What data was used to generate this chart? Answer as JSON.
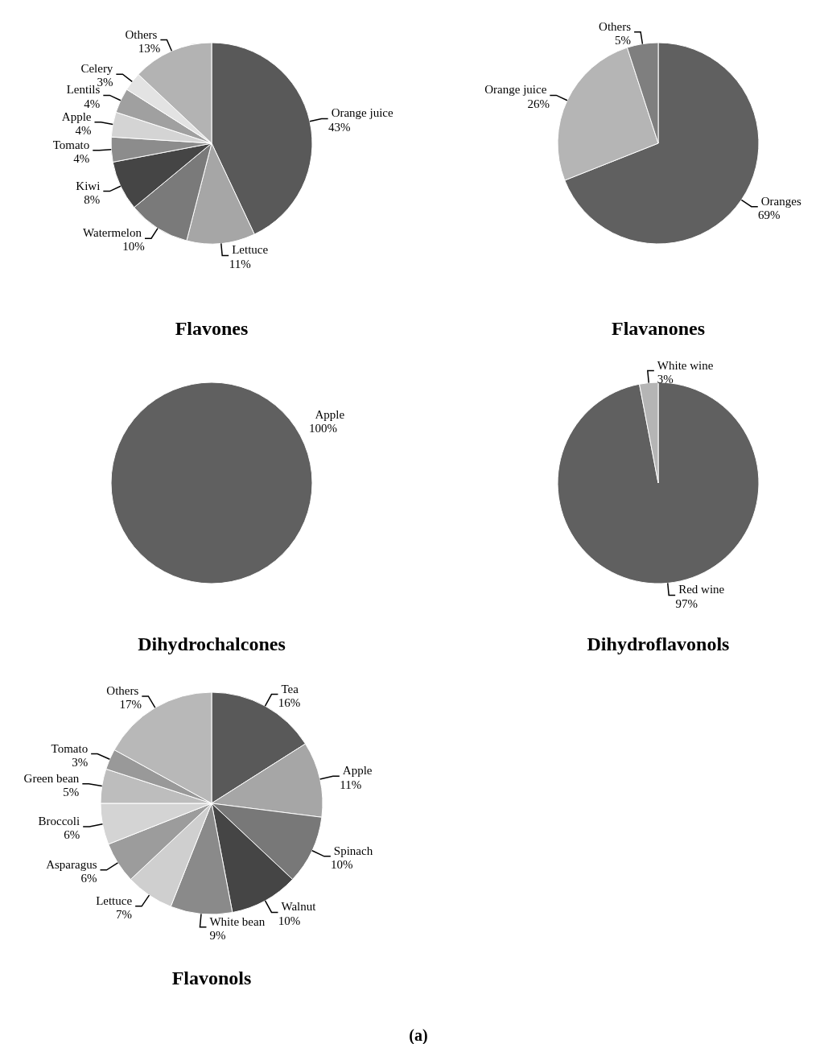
{
  "chart_data": [
    {
      "type": "pie",
      "title": "Flavones",
      "categories": [
        "Orange juice",
        "Lettuce",
        "Watermelon",
        "Kiwi",
        "Tomato",
        "Apple",
        "Lentils",
        "Celery",
        "Others"
      ],
      "values": [
        43,
        11,
        10,
        8,
        4,
        4,
        4,
        3,
        13
      ],
      "value_labels": [
        "43%",
        "11%",
        "10%",
        "8%",
        "4%",
        "4%",
        "4%",
        "3%",
        "13%"
      ],
      "colors": [
        "#595959",
        "#a6a6a6",
        "#7a7a7a",
        "#454545",
        "#8c8c8c",
        "#d4d4d4",
        "#a0a0a0",
        "#e3e3e3",
        "#b3b3b3"
      ]
    },
    {
      "type": "pie",
      "title": "Flavanones",
      "categories": [
        "Oranges",
        "Orange juice",
        "Others"
      ],
      "values": [
        69,
        26,
        5
      ],
      "value_labels": [
        "69%",
        "26%",
        "5%"
      ],
      "colors": [
        "#606060",
        "#b5b5b5",
        "#7f7f7f"
      ]
    },
    {
      "type": "pie",
      "title": "Dihydrochalcones",
      "categories": [
        "Apple"
      ],
      "values": [
        100
      ],
      "value_labels": [
        "100%"
      ],
      "colors": [
        "#606060"
      ]
    },
    {
      "type": "pie",
      "title": "Dihydroflavonols",
      "categories": [
        "Red wine",
        "White wine"
      ],
      "values": [
        97,
        3
      ],
      "value_labels": [
        "97%",
        "3%"
      ],
      "colors": [
        "#606060",
        "#b5b5b5"
      ]
    },
    {
      "type": "pie",
      "title": "Flavonols",
      "categories": [
        "Tea",
        "Apple",
        "Spinach",
        "Walnut",
        "White bean",
        "Lettuce",
        "Asparagus",
        "Broccoli",
        "Green bean",
        "Tomato",
        "Others"
      ],
      "values": [
        16,
        11,
        10,
        10,
        9,
        7,
        6,
        6,
        5,
        3,
        17
      ],
      "value_labels": [
        "16%",
        "11%",
        "10%",
        "10%",
        "9%",
        "7%",
        "6%",
        "6%",
        "5%",
        "3%",
        "17%"
      ],
      "colors": [
        "#595959",
        "#a6a6a6",
        "#787878",
        "#454545",
        "#8a8a8a",
        "#cfcfcf",
        "#9c9c9c",
        "#d4d4d4",
        "#bdbdbd",
        "#999999",
        "#b8b8b8"
      ],
      "annotations": [
        "(a)"
      ]
    }
  ]
}
